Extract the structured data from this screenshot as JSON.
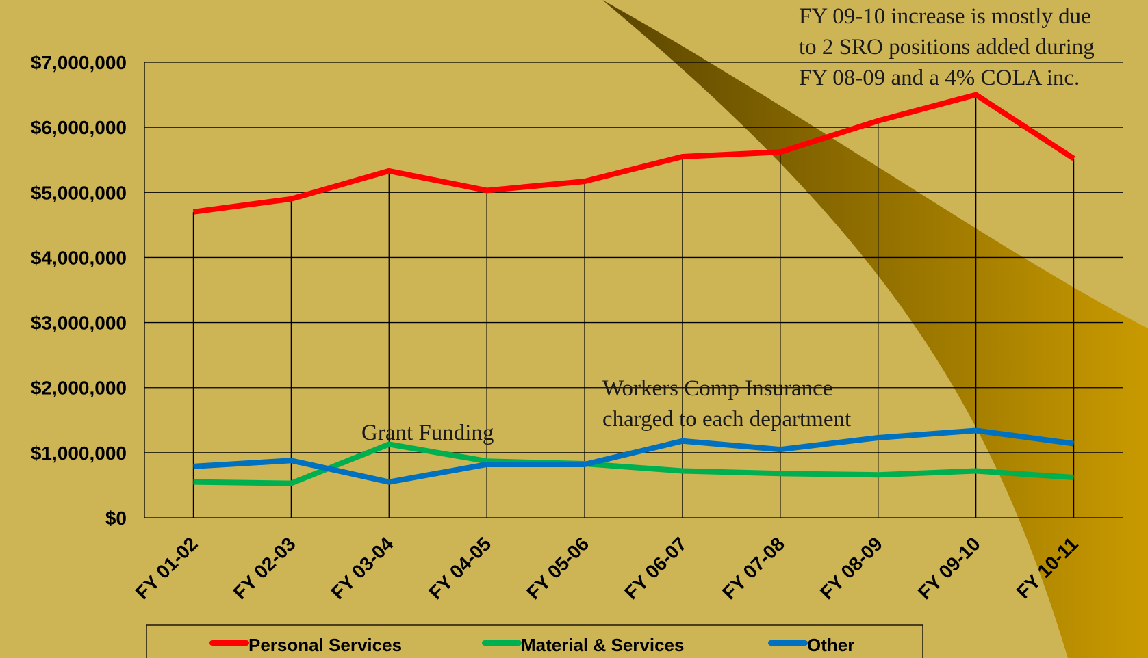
{
  "chart_data": {
    "type": "line",
    "categories": [
      "FY 01-02",
      "FY 02-03",
      "FY 03-04",
      "FY 04-05",
      "FY 05-06",
      "FY 06-07",
      "FY 07-08",
      "FY 08-09",
      "FY 09-10",
      "FY 10-11"
    ],
    "series": [
      {
        "name": "Personal Services",
        "color": "#ff0000",
        "values": [
          4700000,
          4900000,
          5330000,
          5030000,
          5170000,
          5550000,
          5620000,
          6100000,
          6500000,
          5520000
        ]
      },
      {
        "name": "Material & Services",
        "color": "#00b050",
        "values": [
          550000,
          530000,
          1130000,
          870000,
          830000,
          720000,
          680000,
          660000,
          720000,
          620000
        ]
      },
      {
        "name": "Other",
        "color": "#0070c0",
        "values": [
          790000,
          880000,
          550000,
          820000,
          820000,
          1180000,
          1050000,
          1230000,
          1340000,
          1140000
        ]
      }
    ],
    "ylim": [
      0,
      7000000
    ],
    "yticks": [
      {
        "value": 0,
        "label": "$0"
      },
      {
        "value": 1000000,
        "label": "$1,000,000"
      },
      {
        "value": 2000000,
        "label": "$2,000,000"
      },
      {
        "value": 3000000,
        "label": "$3,000,000"
      },
      {
        "value": 4000000,
        "label": "$4,000,000"
      },
      {
        "value": 5000000,
        "label": "$5,000,000"
      },
      {
        "value": 6000000,
        "label": "$6,000,000"
      },
      {
        "value": 7000000,
        "label": "$7,000,000"
      }
    ],
    "grid": true,
    "legend": "bottom",
    "annotations": [
      [
        "FY 09-10 increase  is mostly due",
        "to 2 SRO positions added during",
        "FY 08-09 and a 4% COLA inc."
      ],
      [
        "Grant Funding"
      ],
      [
        "Workers Comp Insurance",
        "charged to each department"
      ]
    ]
  }
}
